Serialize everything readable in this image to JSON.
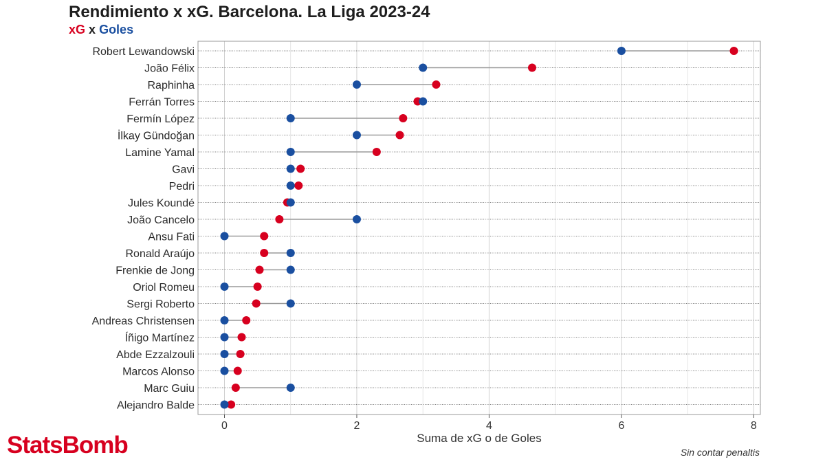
{
  "title": "Rendimiento x xG. Barcelona. La Liga 2023-24",
  "subtitle": {
    "xg_label": "xG",
    "separator": "x",
    "goles_label": "Goles"
  },
  "colors": {
    "xg": "#d7001f",
    "goles": "#1a4fa0",
    "connector": "#9a9a9a",
    "grid": "#dedede"
  },
  "chart_data": {
    "type": "dumbbell",
    "xlabel": "Suma de xG o de Goles",
    "xlim": [
      -0.4,
      8.1
    ],
    "xticks": [
      0,
      2,
      4,
      6,
      8
    ],
    "grid": true,
    "legend": "subtitle",
    "categories": [
      "Robert Lewandowski",
      "João Félix",
      "Raphinha",
      "Ferrán Torres",
      "Fermín López",
      "İlkay Gündoğan",
      "Lamine Yamal",
      "Gavi",
      "Pedri",
      "Jules Koundé",
      "João Cancelo",
      "Ansu Fati",
      "Ronald Araújo",
      "Frenkie de Jong",
      "Oriol Romeu",
      "Sergi Roberto",
      "Andreas Christensen",
      "Íñigo Martínez",
      "Abde Ezzalzouli",
      "Marcos Alonso",
      "Marc Guiu",
      "Alejandro Balde"
    ],
    "series": [
      {
        "name": "xG",
        "values": [
          7.7,
          4.65,
          3.2,
          2.92,
          2.7,
          2.65,
          2.3,
          1.15,
          1.12,
          0.95,
          0.83,
          0.6,
          0.6,
          0.53,
          0.5,
          0.48,
          0.33,
          0.26,
          0.24,
          0.2,
          0.17,
          0.1
        ]
      },
      {
        "name": "Goles",
        "values": [
          6,
          3,
          2,
          3,
          1,
          2,
          1,
          1,
          1,
          1,
          2,
          0,
          1,
          1,
          0,
          1,
          0,
          0,
          0,
          0,
          1,
          0
        ]
      }
    ]
  },
  "brand": "StatsBomb",
  "footnote": "Sin contar penaltis"
}
